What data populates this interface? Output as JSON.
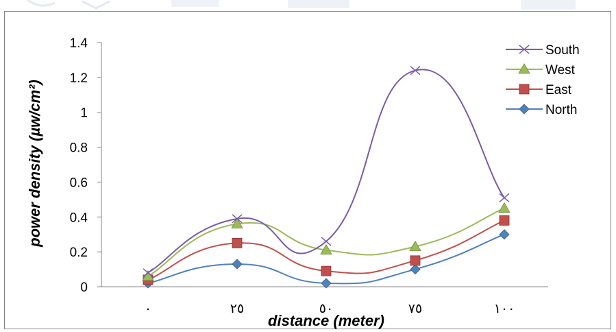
{
  "chart_data": {
    "type": "line",
    "categories": [
      "٠",
      "٢٥",
      "٥٠",
      "٧٥",
      "١٠٠"
    ],
    "series": [
      {
        "name": "South",
        "values": [
          0.08,
          0.39,
          0.26,
          1.24,
          0.51
        ],
        "color": "#7b5ba6",
        "marker": "x"
      },
      {
        "name": "West",
        "values": [
          0.06,
          0.36,
          0.21,
          0.23,
          0.45
        ],
        "color": "#9bbb59",
        "marker": "triangle"
      },
      {
        "name": "East",
        "values": [
          0.04,
          0.25,
          0.09,
          0.15,
          0.38
        ],
        "color": "#c0504d",
        "marker": "square"
      },
      {
        "name": "North",
        "values": [
          0.02,
          0.13,
          0.02,
          0.1,
          0.3
        ],
        "color": "#4f81bd",
        "marker": "diamond"
      }
    ],
    "xlabel": "distance (meter)",
    "ylabel": "power density (µw/cm²)",
    "ylim": [
      0,
      1.4
    ],
    "yticks": [
      "0",
      "0.2",
      "0.4",
      "0.6",
      "0.8",
      "1",
      "1.2",
      "1.4"
    ],
    "grid": false,
    "legend_position": "top-right"
  }
}
